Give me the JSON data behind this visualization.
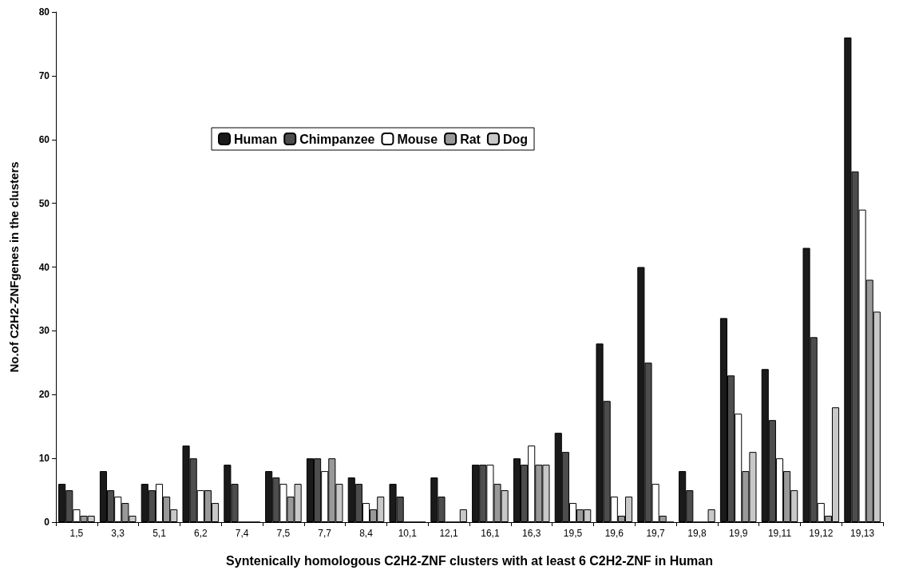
{
  "chart_data": {
    "type": "bar",
    "xlabel": "Syntenically homologous C2H2-ZNF clusters with at least 6 C2H2-ZNF in Human",
    "ylabel": "No.of C2H2-ZNFgenes in the clusters",
    "categories": [
      "1,5",
      "3,3",
      "5,1",
      "6,2",
      "7,4",
      "7,5",
      "7,7",
      "8,4",
      "10,1",
      "12,1",
      "16,1",
      "16,3",
      "19,5",
      "19,6",
      "19,7",
      "19,8",
      "19,9",
      "19,11",
      "19,12",
      "19,13"
    ],
    "series": [
      {
        "name": "Human",
        "color": "#1a1a1a",
        "values": [
          6,
          8,
          6,
          12,
          9,
          8,
          10,
          7,
          6,
          7,
          9,
          10,
          14,
          28,
          40,
          8,
          32,
          24,
          43,
          76
        ]
      },
      {
        "name": "Chimpanzee",
        "color": "#4d4d4d",
        "values": [
          5,
          5,
          5,
          10,
          6,
          7,
          10,
          6,
          4,
          4,
          9,
          9,
          11,
          19,
          25,
          5,
          23,
          16,
          29,
          55
        ]
      },
      {
        "name": "Mouse",
        "color": "#ffffff",
        "values": [
          2,
          4,
          6,
          5,
          0,
          6,
          8,
          3,
          0,
          0,
          9,
          12,
          3,
          4,
          6,
          0,
          17,
          10,
          3,
          49
        ]
      },
      {
        "name": "Rat",
        "color": "#999999",
        "values": [
          1,
          3,
          4,
          5,
          0,
          4,
          10,
          2,
          0,
          0,
          6,
          9,
          2,
          1,
          1,
          0,
          8,
          8,
          1,
          38
        ]
      },
      {
        "name": "Dog",
        "color": "#c8c8c8",
        "values": [
          1,
          1,
          2,
          3,
          0,
          6,
          6,
          4,
          0,
          2,
          5,
          9,
          2,
          4,
          0,
          2,
          11,
          5,
          18,
          33
        ]
      }
    ],
    "ylim": [
      0,
      80
    ],
    "yticks": [
      0,
      10,
      20,
      30,
      40,
      50,
      60,
      70,
      80
    ],
    "grid": false,
    "legend": "top left"
  }
}
